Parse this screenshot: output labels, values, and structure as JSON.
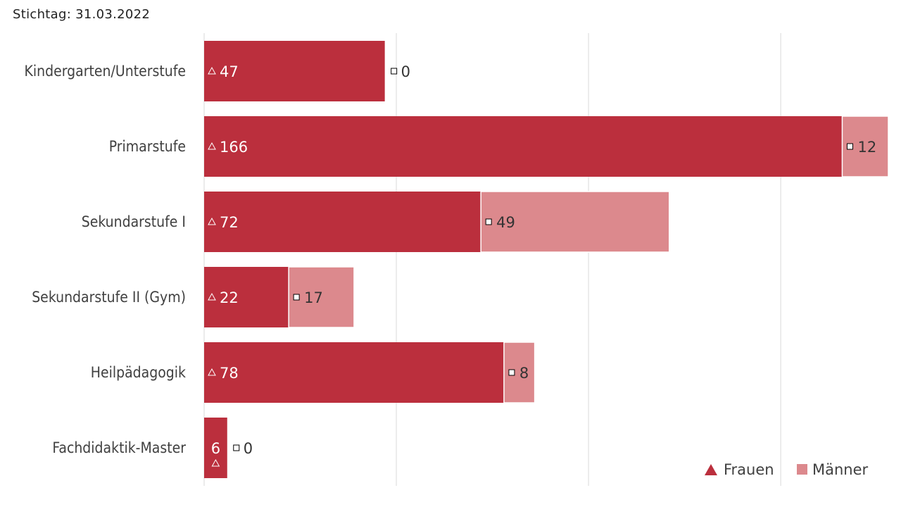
{
  "note": "Stichtag: 31.03.2022",
  "colors": {
    "frauen": "#bb2f3d",
    "maenner": "#dc898d",
    "grid": "#d9d9d9"
  },
  "chart_data": {
    "type": "bar",
    "orientation": "horizontal",
    "stacked": true,
    "categories": [
      "Kindergarten/Unterstufe",
      "Primarstufe",
      "Sekundarstufe I",
      "Sekundarstufe II (Gym)",
      "Heilpädagogik",
      "Fachdidaktik-Master"
    ],
    "series": [
      {
        "name": "Frauen",
        "values": [
          47,
          166,
          72,
          22,
          78,
          6
        ]
      },
      {
        "name": "Männer",
        "values": [
          0,
          12,
          49,
          17,
          8,
          0
        ]
      }
    ],
    "xlim": [
      0,
      180
    ],
    "grid": true,
    "legend": "bottom-right"
  }
}
